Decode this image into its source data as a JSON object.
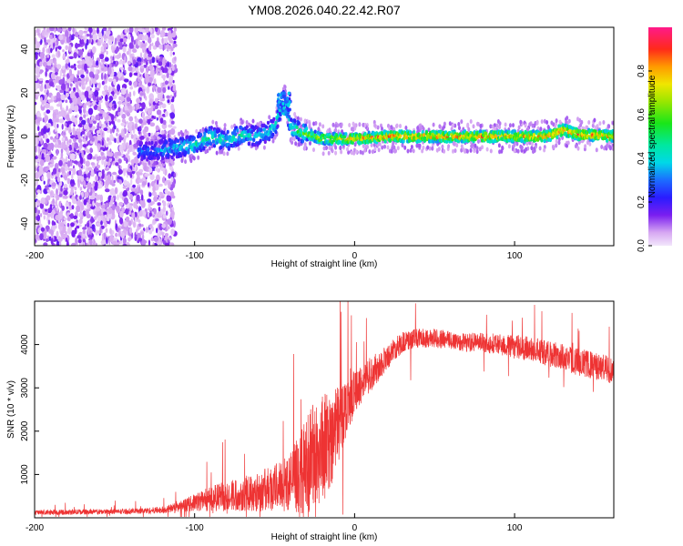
{
  "title": "YM08.2026.040.22.42.R07",
  "chart_data": [
    {
      "type": "heatmap",
      "panel": "spectrogram",
      "xlabel": "Height of straight line (km)",
      "ylabel": "Frequency (Hz)",
      "xlim": [
        -200,
        162
      ],
      "ylim": [
        -50,
        50
      ],
      "xticks": [
        -200,
        -100,
        0,
        100
      ],
      "yticks": [
        -40,
        -20,
        0,
        20,
        40
      ],
      "xtick_labels": [
        "-200",
        "-100",
        "0",
        "100"
      ],
      "ytick_labels": [
        "-40",
        "-20",
        "0",
        "20",
        "40"
      ],
      "colorbar": {
        "label": "Normalized spectral amplitude",
        "range": [
          0,
          1
        ],
        "ticks": [
          0,
          0.2,
          0.4,
          0.6,
          0.8
        ],
        "tick_labels": [
          "0.0",
          "0.2",
          "0.4",
          "0.6",
          "0.8"
        ]
      },
      "noise_region_x": [
        -200,
        -112
      ],
      "signal_track": [
        {
          "x": -130,
          "f": -7,
          "amp": 0.3
        },
        {
          "x": -120,
          "f": -6,
          "amp": 0.35
        },
        {
          "x": -110,
          "f": -5,
          "amp": 0.4
        },
        {
          "x": -100,
          "f": -4,
          "amp": 0.45
        },
        {
          "x": -90,
          "f": 0,
          "amp": 0.5
        },
        {
          "x": -80,
          "f": -2,
          "amp": 0.45
        },
        {
          "x": -70,
          "f": 1,
          "amp": 0.45
        },
        {
          "x": -60,
          "f": 0,
          "amp": 0.4
        },
        {
          "x": -50,
          "f": 4,
          "amp": 0.45
        },
        {
          "x": -44,
          "f": 18,
          "amp": 0.35
        },
        {
          "x": -40,
          "f": 4,
          "amp": 0.5
        },
        {
          "x": -30,
          "f": 1,
          "amp": 0.6
        },
        {
          "x": -20,
          "f": -1,
          "amp": 0.7
        },
        {
          "x": 0,
          "f": -1,
          "amp": 0.8
        },
        {
          "x": 20,
          "f": 0,
          "amp": 0.85
        },
        {
          "x": 40,
          "f": 0,
          "amp": 0.85
        },
        {
          "x": 60,
          "f": 0,
          "amp": 0.85
        },
        {
          "x": 80,
          "f": 0,
          "amp": 0.85
        },
        {
          "x": 100,
          "f": 0,
          "amp": 0.8
        },
        {
          "x": 120,
          "f": 0,
          "amp": 0.85
        },
        {
          "x": 130,
          "f": 3,
          "amp": 0.85
        },
        {
          "x": 140,
          "f": 1,
          "amp": 0.85
        },
        {
          "x": 162,
          "f": 0,
          "amp": 0.8
        }
      ]
    },
    {
      "type": "line",
      "panel": "snr",
      "xlabel": "Height of straight line (km)",
      "ylabel": "SNR (10 * v/v)",
      "xlim": [
        -200,
        162
      ],
      "ylim": [
        0,
        5000
      ],
      "xticks": [
        -200,
        -100,
        0,
        100
      ],
      "yticks": [
        1000,
        2000,
        3000,
        4000
      ],
      "xtick_labels": [
        "-200",
        "-100",
        "0",
        "100"
      ],
      "ytick_labels": [
        "1000",
        "2000",
        "3000",
        "4000"
      ],
      "color": "#ee3333",
      "series": [
        {
          "name": "SNR",
          "x": [
            -200,
            -180,
            -160,
            -140,
            -120,
            -110,
            -100,
            -90,
            -80,
            -70,
            -60,
            -50,
            -40,
            -35,
            -30,
            -25,
            -20,
            -15,
            -10,
            -5,
            0,
            5,
            10,
            15,
            20,
            25,
            30,
            40,
            50,
            60,
            70,
            80,
            90,
            100,
            110,
            120,
            130,
            140,
            150,
            162
          ],
          "y": [
            120,
            130,
            140,
            150,
            180,
            250,
            350,
            450,
            500,
            550,
            600,
            700,
            850,
            1000,
            1200,
            1500,
            1600,
            1800,
            2200,
            2600,
            2900,
            3100,
            3300,
            3500,
            3700,
            3900,
            4050,
            4150,
            4150,
            4100,
            4050,
            4050,
            4000,
            3950,
            3900,
            3800,
            3700,
            3600,
            3500,
            3400
          ],
          "spread": [
            60,
            60,
            60,
            60,
            80,
            120,
            200,
            300,
            350,
            400,
            450,
            550,
            700,
            900,
            1100,
            1300,
            1300,
            1100,
            900,
            700,
            500,
            400,
            400,
            350,
            300,
            250,
            250,
            220,
            220,
            220,
            220,
            220,
            250,
            280,
            280,
            300,
            320,
            320,
            320,
            320
          ]
        }
      ]
    }
  ]
}
